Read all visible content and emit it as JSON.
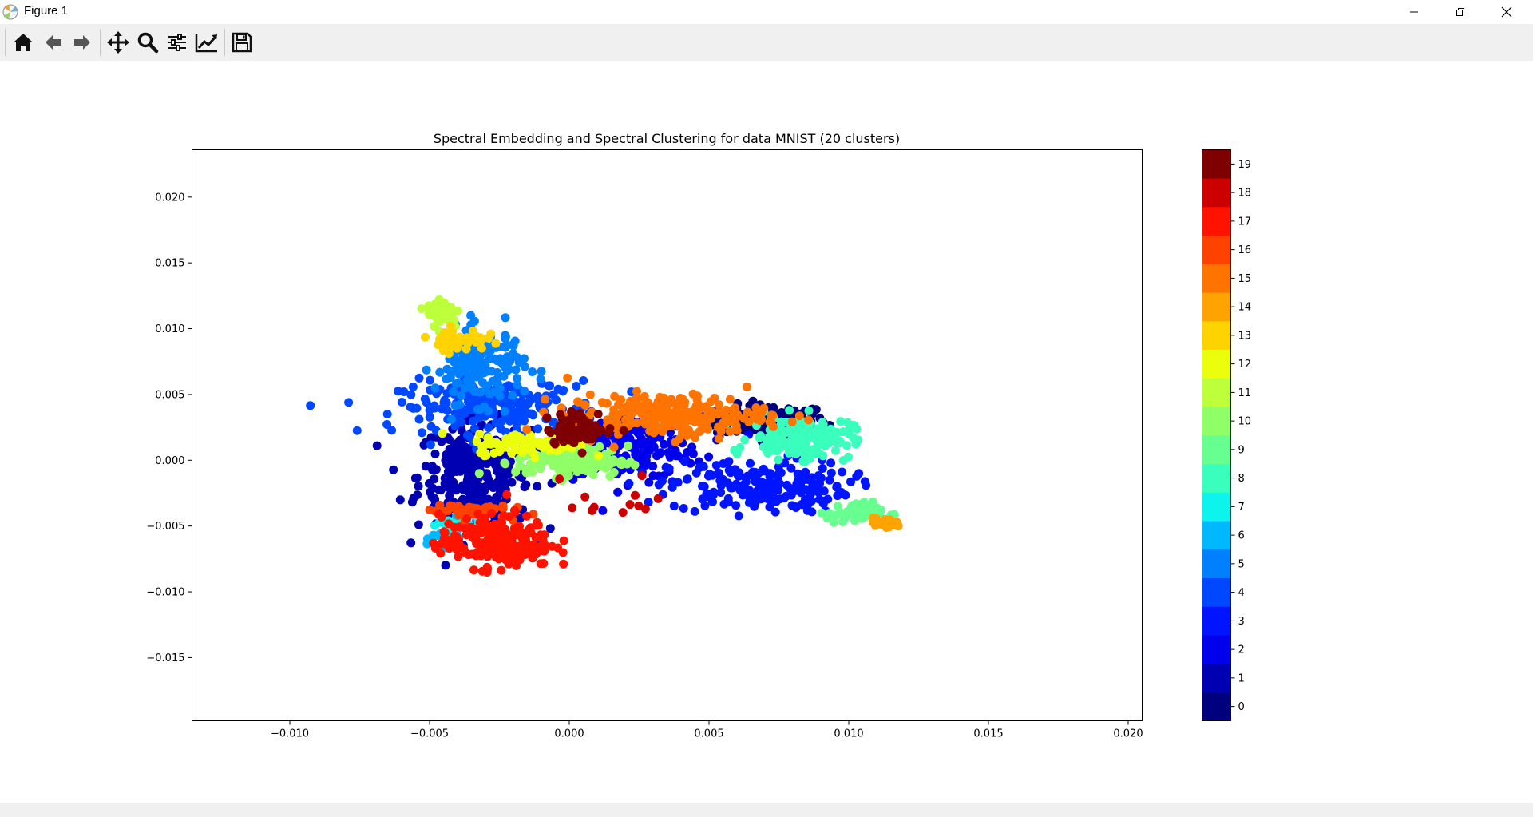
{
  "window": {
    "title": "Figure 1",
    "controls": [
      "minimize",
      "restore",
      "close"
    ]
  },
  "toolbar": {
    "tools": [
      {
        "name": "home-icon",
        "tooltip": "Reset original view"
      },
      {
        "name": "back-arrow-icon",
        "tooltip": "Back to previous view"
      },
      {
        "name": "forward-arrow-icon",
        "tooltip": "Forward to next view"
      },
      {
        "name": "pan-icon",
        "tooltip": "Pan axes"
      },
      {
        "name": "zoom-icon",
        "tooltip": "Zoom to rectangle"
      },
      {
        "name": "configure-subplots-icon",
        "tooltip": "Configure subplots"
      },
      {
        "name": "edit-axis-icon",
        "tooltip": "Edit axis, curve and image parameters"
      },
      {
        "name": "save-icon",
        "tooltip": "Save the figure"
      }
    ]
  },
  "chart_data": {
    "type": "scatter",
    "title": "Spectral Embedding and Spectral Clustering for data MNIST (20 clusters)",
    "xlabel": "",
    "ylabel": "",
    "xlim": [
      -0.0135,
      0.0205
    ],
    "ylim": [
      -0.0198,
      0.0236
    ],
    "xticks": [
      -0.01,
      -0.005,
      0.0,
      0.005,
      0.01,
      0.015,
      0.02
    ],
    "xtick_labels": [
      "−0.010",
      "−0.005",
      "0.000",
      "0.005",
      "0.010",
      "0.015",
      "0.020"
    ],
    "yticks": [
      0.02,
      0.015,
      0.01,
      0.005,
      0.0,
      -0.005,
      -0.01,
      -0.015
    ],
    "ytick_labels": [
      "0.020",
      "0.015",
      "0.010",
      "0.005",
      "0.000",
      "−0.005",
      "−0.010",
      "−0.015"
    ],
    "grid": false,
    "colorbar": {
      "colormap": "jet",
      "labels": [
        "0",
        "1",
        "2",
        "3",
        "4",
        "5",
        "6",
        "7",
        "8",
        "9",
        "10",
        "11",
        "12",
        "13",
        "14",
        "15",
        "16",
        "17",
        "18",
        "19"
      ],
      "colors": [
        "#00007f",
        "#0000b2",
        "#0000ec",
        "#0014ff",
        "#0048ff",
        "#0080ff",
        "#00b8ff",
        "#0cf4eb",
        "#3affbc",
        "#67ff90",
        "#90ff67",
        "#bcff3a",
        "#ebff0c",
        "#ffd300",
        "#ffa300",
        "#ff7400",
        "#ff4200",
        "#ff1300",
        "#cc0000",
        "#7f0000"
      ]
    },
    "clusters": [
      {
        "label": 0,
        "center": [
          0.0072,
          0.003
        ],
        "spread": [
          0.001,
          0.0006
        ],
        "n": 130
      },
      {
        "label": 1,
        "center": [
          -0.0034,
          -0.0012
        ],
        "spread": [
          0.001,
          0.002
        ],
        "n": 320
      },
      {
        "label": 2,
        "center": [
          0.002,
          0.001
        ],
        "spread": [
          0.0014,
          0.0012
        ],
        "n": 230
      },
      {
        "label": 3,
        "center": [
          0.0068,
          -0.002
        ],
        "spread": [
          0.0016,
          0.001
        ],
        "n": 200
      },
      {
        "label": 4,
        "center": [
          -0.0025,
          0.004
        ],
        "spread": [
          0.0018,
          0.001
        ],
        "n": 220
      },
      {
        "label": 5,
        "center": [
          -0.0032,
          0.0072
        ],
        "spread": [
          0.0008,
          0.0014
        ],
        "n": 170
      },
      {
        "label": 6,
        "center": [
          -0.0043,
          -0.006
        ],
        "spread": [
          0.0003,
          0.0006
        ],
        "n": 30
      },
      {
        "label": 7,
        "center": [
          -0.0041,
          -0.005
        ],
        "spread": [
          0.0005,
          0.0003
        ],
        "n": 25
      },
      {
        "label": 8,
        "center": [
          0.0083,
          0.0017
        ],
        "spread": [
          0.0009,
          0.0008
        ],
        "n": 170
      },
      {
        "label": 9,
        "center": [
          0.0102,
          -0.004
        ],
        "spread": [
          0.0005,
          0.0004
        ],
        "n": 60
      },
      {
        "label": 10,
        "center": [
          0.0001,
          -0.0001
        ],
        "spread": [
          0.001,
          0.0006
        ],
        "n": 130
      },
      {
        "label": 11,
        "center": [
          -0.0045,
          0.0112
        ],
        "spread": [
          0.0003,
          0.0006
        ],
        "n": 60
      },
      {
        "label": 12,
        "center": [
          -0.0015,
          0.0012
        ],
        "spread": [
          0.0009,
          0.0004
        ],
        "n": 90
      },
      {
        "label": 13,
        "center": [
          -0.004,
          0.0092
        ],
        "spread": [
          0.0005,
          0.0004
        ],
        "n": 60
      },
      {
        "label": 14,
        "center": [
          0.0113,
          -0.0048
        ],
        "spread": [
          0.0003,
          0.0002
        ],
        "n": 25
      },
      {
        "label": 15,
        "center": [
          0.0035,
          0.0034
        ],
        "spread": [
          0.0018,
          0.0008
        ],
        "n": 230
      },
      {
        "label": 16,
        "center": [
          -0.0036,
          -0.0038
        ],
        "spread": [
          0.0007,
          0.0003
        ],
        "n": 50
      },
      {
        "label": 17,
        "center": [
          -0.0026,
          -0.0062
        ],
        "spread": [
          0.001,
          0.001
        ],
        "n": 230
      },
      {
        "label": 18,
        "center": [
          0.0013,
          -0.0035
        ],
        "spread": [
          0.0012,
          0.0014
        ],
        "n": 12
      },
      {
        "label": 19,
        "center": [
          0.0004,
          0.0024
        ],
        "spread": [
          0.0006,
          0.0006
        ],
        "n": 70
      }
    ]
  }
}
